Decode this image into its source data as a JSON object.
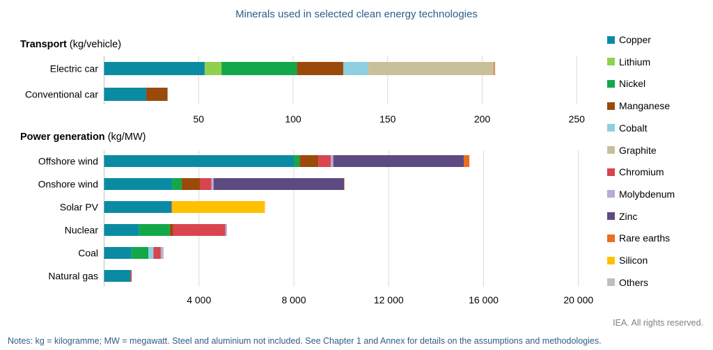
{
  "title": "Minerals used in selected clean energy technologies",
  "credit": "IEA. All rights reserved.",
  "notes": "Notes: kg = kilogramme; MW = megawatt. Steel and aluminium not included. See Chapter 1 and Annex for details on the assumptions and methodologies.",
  "colors": {
    "Copper": "#0b8ba2",
    "Lithium": "#8fd14f",
    "Nickel": "#12a84a",
    "Manganese": "#9c4a0a",
    "Cobalt": "#8ecfe0",
    "Graphite": "#c8c09a",
    "Chromium": "#d9454f",
    "Molybdenum": "#b9a9d4",
    "Zinc": "#5d4a82",
    "Rare earths": "#e8701a",
    "Silicon": "#ffc000",
    "Others": "#bfbfbf"
  },
  "legend": [
    "Copper",
    "Lithium",
    "Nickel",
    "Manganese",
    "Cobalt",
    "Graphite",
    "Chromium",
    "Molybdenum",
    "Zinc",
    "Rare earths",
    "Silicon",
    "Others"
  ],
  "chart_data": [
    {
      "type": "bar",
      "orientation": "horizontal",
      "stacked": true,
      "title_bold": "Transport",
      "title_unit": " (kg/vehicle)",
      "categories": [
        "Electric car",
        "Conventional car"
      ],
      "xlim": [
        0,
        260
      ],
      "xticks": [
        50,
        100,
        150,
        200,
        250
      ],
      "xtick_labels": [
        "50",
        "100",
        "150",
        "200",
        "250"
      ],
      "series": [
        {
          "name": "Copper",
          "values": [
            53.2,
            22.3
          ]
        },
        {
          "name": "Lithium",
          "values": [
            8.9,
            0
          ]
        },
        {
          "name": "Nickel",
          "values": [
            39.9,
            0
          ]
        },
        {
          "name": "Manganese",
          "values": [
            24.5,
            11.2
          ]
        },
        {
          "name": "Cobalt",
          "values": [
            13.3,
            0
          ]
        },
        {
          "name": "Graphite",
          "values": [
            66.3,
            0
          ]
        },
        {
          "name": "Rare earths",
          "values": [
            0.5,
            0
          ]
        },
        {
          "name": "Others",
          "values": [
            0.3,
            0.3
          ]
        }
      ]
    },
    {
      "type": "bar",
      "orientation": "horizontal",
      "stacked": true,
      "title_bold": "Power generation",
      "title_unit": " (kg/MW)",
      "categories": [
        "Offshore wind",
        "Onshore wind",
        "Solar PV",
        "Nuclear",
        "Coal",
        "Natural gas"
      ],
      "xlim": [
        0,
        21000
      ],
      "xticks": [
        4000,
        8000,
        12000,
        16000,
        20000
      ],
      "xtick_labels": [
        "4 000",
        "8 000",
        "12 000",
        "16 000",
        "20 000"
      ],
      "series": [
        {
          "name": "Copper",
          "values": [
            8000,
            2866,
            2822,
            1473,
            1150,
            1100
          ]
        },
        {
          "name": "Nickel",
          "values": [
            240,
            404,
            1,
            1297,
            721,
            16
          ]
        },
        {
          "name": "Manganese",
          "values": [
            790,
            780,
            0,
            148,
            0,
            0
          ]
        },
        {
          "name": "Cobalt",
          "values": [
            0,
            0,
            0,
            0,
            210,
            0
          ]
        },
        {
          "name": "Chromium",
          "values": [
            525,
            470,
            0,
            2190,
            308,
            48
          ]
        },
        {
          "name": "Molybdenum",
          "values": [
            109,
            99,
            0,
            70,
            66,
            0
          ]
        },
        {
          "name": "Zinc",
          "values": [
            5500,
            5500,
            30,
            0,
            0,
            0
          ]
        },
        {
          "name": "Rare earths",
          "values": [
            239,
            14,
            0,
            0,
            0,
            0
          ]
        },
        {
          "name": "Silicon",
          "values": [
            0,
            0,
            3928,
            0,
            0,
            0
          ]
        },
        {
          "name": "Others",
          "values": [
            0,
            0,
            0,
            0,
            60,
            0
          ]
        }
      ]
    }
  ]
}
